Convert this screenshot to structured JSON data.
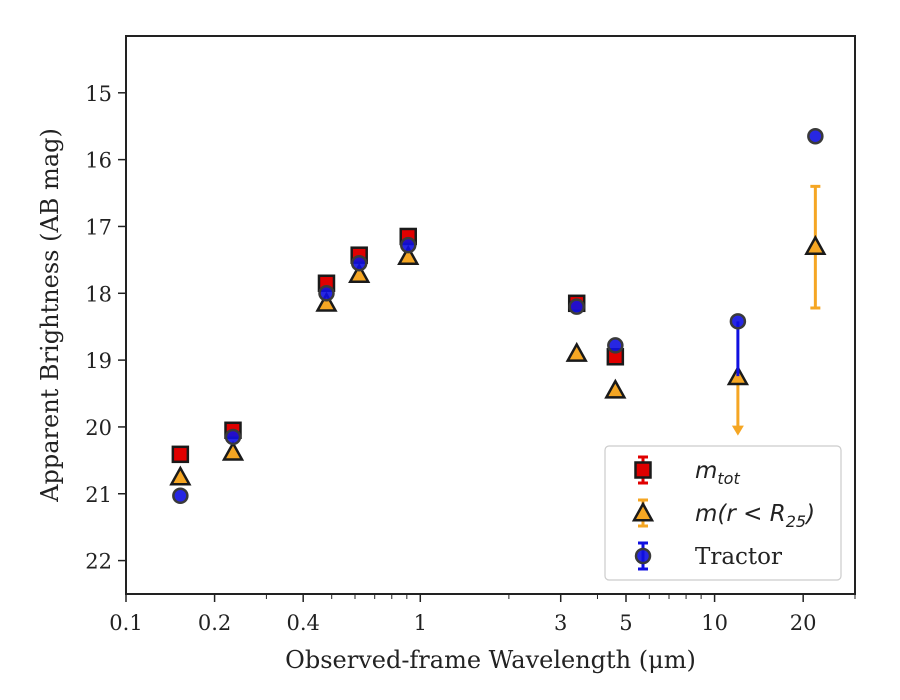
{
  "chart_data": {
    "type": "scatter",
    "xlabel": "Observed-frame Wavelength (μm)",
    "ylabel": "Apparent Brightness (AB mag)",
    "x_scale": "log",
    "y_inverted": true,
    "xlim": [
      0.1,
      30
    ],
    "ylim": [
      22.5,
      14.15
    ],
    "x_ticks": [
      0.1,
      0.2,
      0.4,
      1,
      3,
      5,
      10,
      20
    ],
    "x_tick_labels": [
      "0.1",
      "0.2",
      "0.4",
      "1",
      "3",
      "5",
      "10",
      "20"
    ],
    "y_ticks": [
      15,
      16,
      17,
      18,
      19,
      20,
      21,
      22
    ],
    "y_tick_labels": [
      "15",
      "16",
      "17",
      "18",
      "19",
      "20",
      "21",
      "22"
    ],
    "grid": false,
    "legend_position": "lower-right",
    "series": [
      {
        "name": "m_tot",
        "legend_label": {
          "main": "m",
          "sub": "tot"
        },
        "marker": "square",
        "color": "#e00000",
        "points": [
          {
            "x": 0.153,
            "y": 20.41
          },
          {
            "x": 0.231,
            "y": 20.05
          },
          {
            "x": 0.48,
            "y": 17.85
          },
          {
            "x": 0.62,
            "y": 17.43
          },
          {
            "x": 0.91,
            "y": 17.15
          },
          {
            "x": 3.4,
            "y": 18.15
          },
          {
            "x": 4.6,
            "y": 18.95
          }
        ]
      },
      {
        "name": "m(r < R25)",
        "legend_label": {
          "main": "m(r < R",
          "sub": "25",
          "tail": ")"
        },
        "marker": "triangle",
        "color": "#f5a623",
        "points": [
          {
            "x": 0.153,
            "y": 20.75
          },
          {
            "x": 0.231,
            "y": 20.38
          },
          {
            "x": 0.48,
            "y": 18.15
          },
          {
            "x": 0.62,
            "y": 17.72
          },
          {
            "x": 0.91,
            "y": 17.45
          },
          {
            "x": 3.4,
            "y": 18.9
          },
          {
            "x": 4.6,
            "y": 19.45
          },
          {
            "x": 12,
            "y": 19.25,
            "upper_limit": true,
            "arrow_to": 20.1
          },
          {
            "x": 22,
            "y": 17.3,
            "err_low": 0.9,
            "err_high": 0.92
          }
        ]
      },
      {
        "name": "Tractor",
        "legend_label": {
          "main": "Tractor"
        },
        "marker": "circle",
        "color": "#1010e0",
        "points": [
          {
            "x": 0.153,
            "y": 21.03
          },
          {
            "x": 0.231,
            "y": 20.15
          },
          {
            "x": 0.48,
            "y": 18.0
          },
          {
            "x": 0.62,
            "y": 17.55
          },
          {
            "x": 0.91,
            "y": 17.28
          },
          {
            "x": 3.4,
            "y": 18.2
          },
          {
            "x": 4.6,
            "y": 18.78
          },
          {
            "x": 12,
            "y": 18.42,
            "err_low": 0.0,
            "err_high": 0.82
          },
          {
            "x": 22,
            "y": 15.65
          }
        ]
      }
    ]
  }
}
